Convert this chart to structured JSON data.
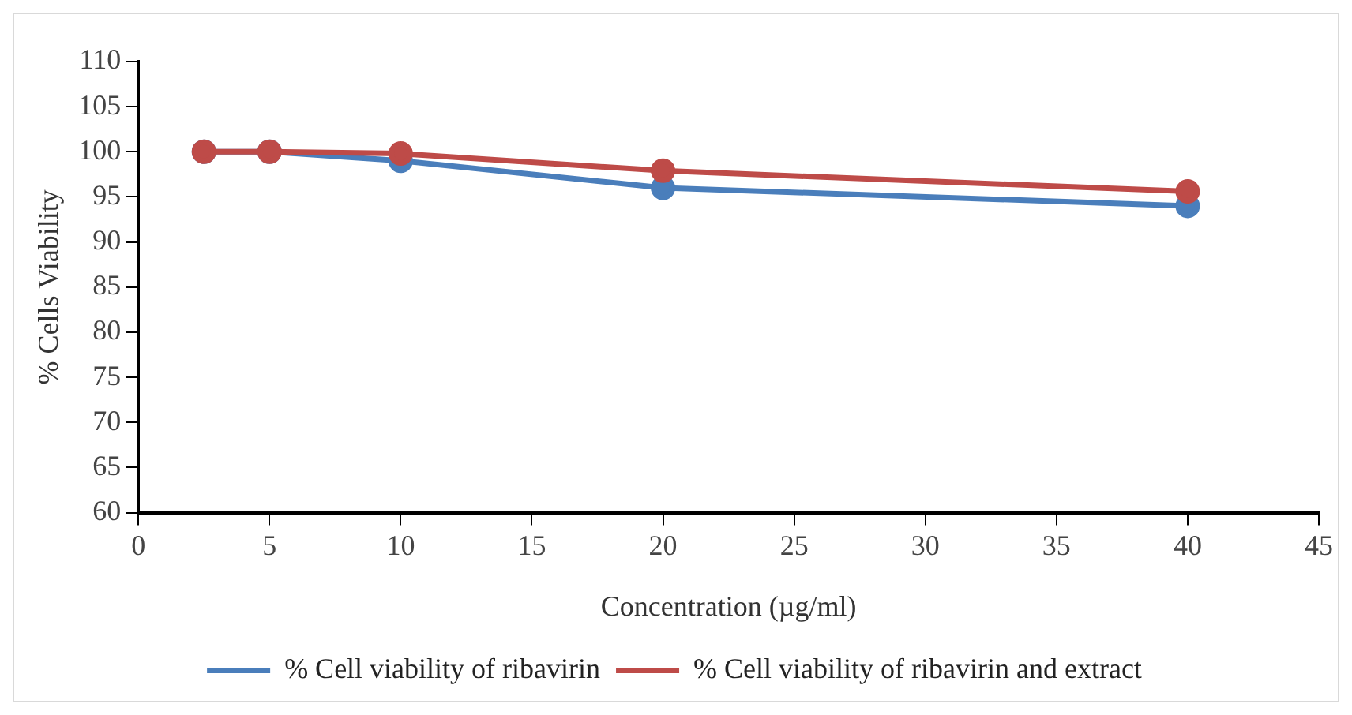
{
  "chart_data": {
    "type": "line",
    "xlabel": "Concentration (µg/ml)",
    "ylabel": "% Cells Viability",
    "x": [
      2.5,
      5,
      10,
      20,
      40
    ],
    "series": [
      {
        "name": "% Cell viability of ribavirin",
        "color": "#4a7ebb",
        "values": [
          100,
          100,
          99,
          96,
          94
        ]
      },
      {
        "name": "% Cell viability of ribavirin and extract",
        "color": "#be4b48",
        "values": [
          100,
          100,
          99.8,
          97.9,
          95.6
        ]
      }
    ],
    "xlim": [
      0,
      45
    ],
    "xticks": [
      0,
      5,
      10,
      15,
      20,
      25,
      30,
      35,
      40,
      45
    ],
    "ylim": [
      60,
      110
    ],
    "yticks": [
      60,
      65,
      70,
      75,
      80,
      85,
      90,
      95,
      100,
      105,
      110
    ],
    "grid": false,
    "legend": "bottom",
    "marker": "circle",
    "line_style": "solid"
  }
}
